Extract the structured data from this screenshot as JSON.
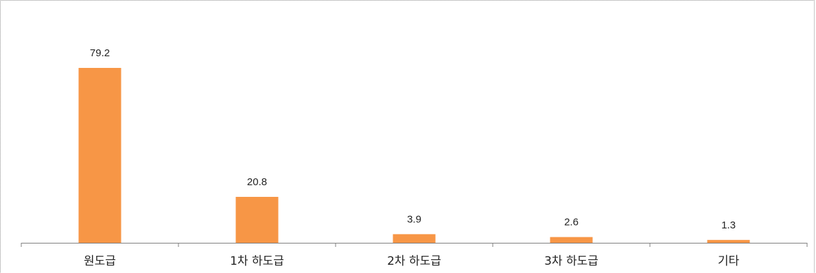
{
  "chart_data": {
    "type": "bar",
    "categories": [
      "원도급",
      "1차 하도급",
      "2차 하도급",
      "3차 하도급",
      "기타"
    ],
    "values": [
      79.2,
      20.8,
      3.9,
      2.6,
      1.3
    ],
    "data_labels": [
      "79.2",
      "20.8",
      "3.9",
      "2.6",
      "1.3"
    ],
    "ylim": [
      0,
      79.2
    ],
    "grid": false,
    "bar_color": "#f79646",
    "axis_color": "#7f7f7f"
  }
}
